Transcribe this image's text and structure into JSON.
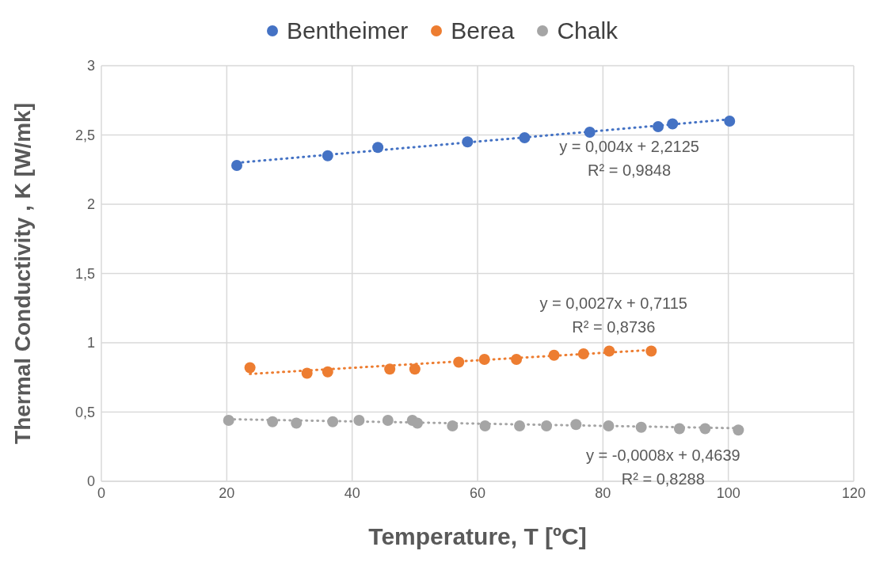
{
  "chart_data": {
    "type": "scatter",
    "xlabel": "Temperature, T [ºC]",
    "ylabel": "Thermal Conductivity , K [W/mk]",
    "xlim": [
      0,
      120
    ],
    "xticks": [
      0,
      20,
      40,
      60,
      80,
      100,
      120
    ],
    "ylim": [
      0,
      3
    ],
    "yticks": [
      0,
      {
        "value": 0.5,
        "label": "0,5"
      },
      1,
      {
        "value": 1.5,
        "label": "1,5"
      },
      2,
      {
        "value": 2.5,
        "label": "2,5"
      },
      3
    ],
    "grid": true,
    "legend": "top",
    "marker": "circle",
    "series": [
      {
        "name": "Bentheimer",
        "color": "#4472c4",
        "x": [
          21.6,
          36.1,
          44.1,
          58.4,
          67.5,
          77.9,
          88.8,
          91.1,
          100.2
        ],
        "values": [
          2.28,
          2.35,
          2.41,
          2.45,
          2.48,
          2.52,
          2.56,
          2.58,
          2.6
        ]
      },
      {
        "name": "Berea",
        "color": "#ed7d31",
        "x": [
          23.7,
          32.8,
          36.1,
          46.0,
          50.0,
          57.0,
          61.1,
          66.2,
          72.2,
          76.9,
          81.0,
          87.7
        ],
        "values": [
          0.82,
          0.78,
          0.79,
          0.81,
          0.81,
          0.86,
          0.88,
          0.88,
          0.91,
          0.92,
          0.94,
          0.94
        ]
      },
      {
        "name": "Chalk",
        "color": "#a5a5a5",
        "x": [
          20.3,
          27.3,
          31.1,
          36.9,
          41.1,
          45.7,
          49.6,
          50.4,
          56.0,
          61.2,
          66.7,
          71.0,
          75.7,
          80.9,
          86.1,
          92.2,
          96.3,
          101.6
        ],
        "values": [
          0.44,
          0.43,
          0.42,
          0.43,
          0.44,
          0.44,
          0.44,
          0.42,
          0.4,
          0.4,
          0.4,
          0.4,
          0.41,
          0.4,
          0.39,
          0.38,
          0.38,
          0.37
        ]
      },
      {
        "type": "line",
        "line_style": "dotted",
        "marker": "none",
        "color": "#4472c4",
        "x": [
          21.6,
          100.2
        ],
        "values": [
          2.299,
          2.613
        ]
      },
      {
        "type": "line",
        "line_style": "dotted",
        "marker": "none",
        "color": "#ed7d31",
        "x": [
          23.7,
          87.7
        ],
        "values": [
          0.775,
          0.948
        ]
      },
      {
        "type": "line",
        "line_style": "dotted",
        "marker": "none",
        "color": "#a5a5a5",
        "x": [
          20.3,
          101.6
        ],
        "values": [
          0.448,
          0.383
        ]
      }
    ],
    "annotations": [
      "y = 0,004x + 2,2125",
      "R² = 0,9848",
      "y = 0,0027x + 0,7115",
      "R² = 0,8736",
      "y = -0,0008x + 0,4639",
      "R² = 0,8288"
    ]
  }
}
